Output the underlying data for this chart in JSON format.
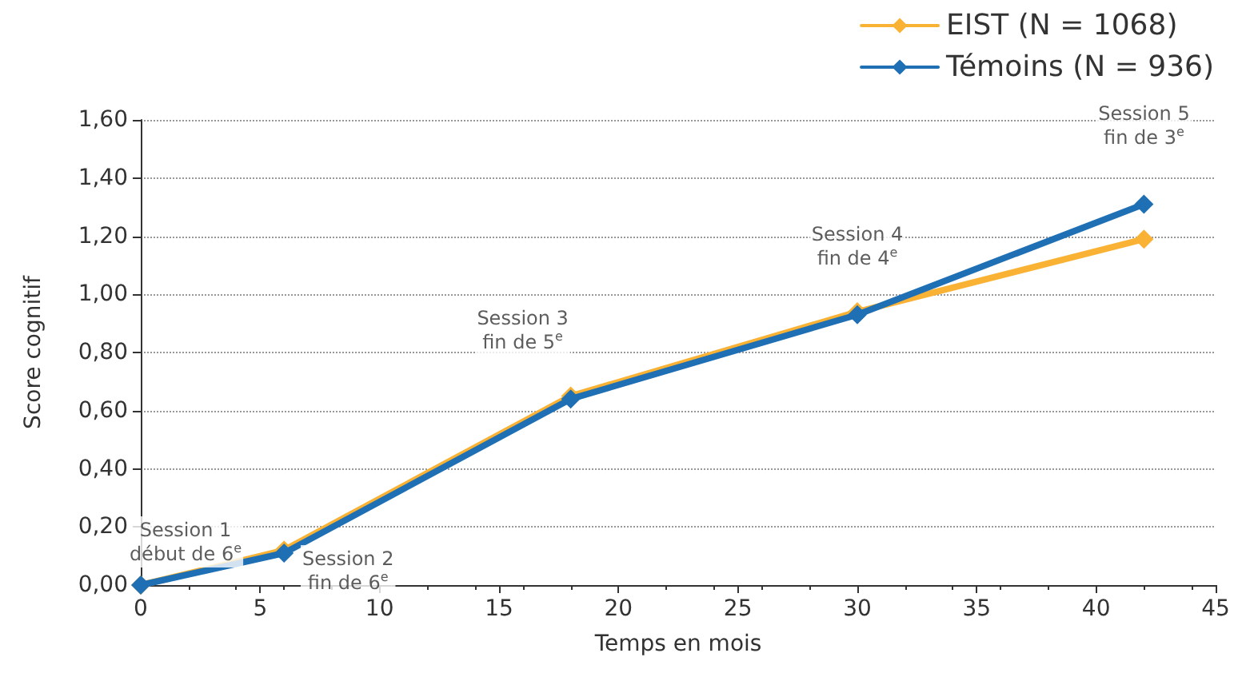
{
  "chart_data": {
    "type": "line",
    "xlabel": "Temps en mois",
    "ylabel": "Score cognitif",
    "x": [
      0,
      6,
      18,
      30,
      42
    ],
    "series": [
      {
        "name": "EIST (N = 1068)",
        "color": "#f9b233",
        "values": [
          0,
          0.12,
          0.65,
          0.94,
          1.19
        ]
      },
      {
        "name": "Témoins (N = 936)",
        "color": "#1f6fb4",
        "values": [
          0,
          0.11,
          0.64,
          0.93,
          1.31
        ]
      }
    ],
    "xlim": [
      0,
      45
    ],
    "xticks": [
      0,
      5,
      10,
      15,
      20,
      25,
      30,
      35,
      40,
      45
    ],
    "ylim": [
      0,
      1.6
    ],
    "yticks": [
      {
        "value": 0,
        "label": "0,00"
      },
      {
        "value": 0.2,
        "label": "0,20"
      },
      {
        "value": 0.4,
        "label": "0,40"
      },
      {
        "value": 0.6,
        "label": "0,60"
      },
      {
        "value": 0.8,
        "label": "0,80"
      },
      {
        "value": 1.0,
        "label": "1,00"
      },
      {
        "value": 1.2,
        "label": "1,20"
      },
      {
        "value": 1.4,
        "label": "1,40"
      },
      {
        "value": 1.6,
        "label": "1,60"
      }
    ],
    "annotations": [
      {
        "text": "Session 1\ndébut de 6$^{e}$",
        "x": 0,
        "y": 0
      },
      {
        "text": "Session 2\nfin de 6$^{e}$",
        "x": 6,
        "y": 0.11
      },
      {
        "text": "Session 3\nfin de 5$^{e}$",
        "x": 18,
        "y": 0.64
      },
      {
        "text": "Session 4\nfin de 4$^{e}$",
        "x": 30,
        "y": 0.93
      },
      {
        "text": "Session 5\nfin de 3$^{e}$",
        "x": 42,
        "y": 1.31
      }
    ],
    "grid": "y",
    "legend": "top right",
    "marker": "diamond",
    "line_style": "solid"
  }
}
